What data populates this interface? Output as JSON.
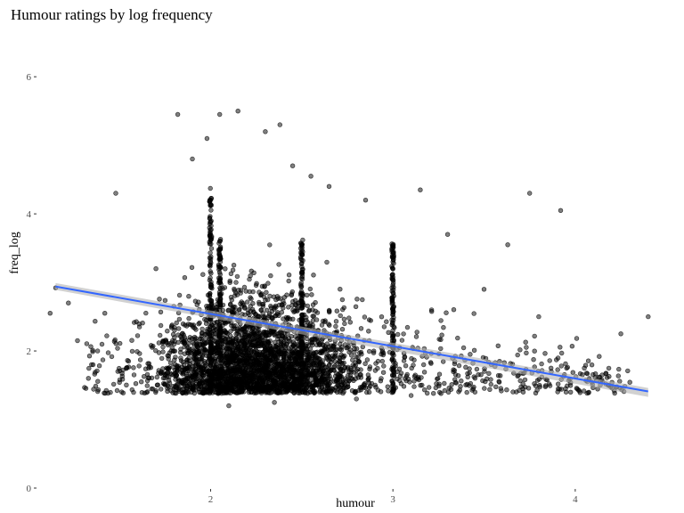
{
  "chart_data": {
    "type": "scatter",
    "title": "Humour ratings by log frequency",
    "xlabel": "humour",
    "ylabel": "freq_log",
    "xlim": [
      1.05,
      4.45
    ],
    "ylim": [
      0,
      6.6
    ],
    "x_ticks": [
      2,
      3,
      4
    ],
    "y_ticks": [
      0,
      2,
      4,
      6
    ],
    "grid": false,
    "legend": "none",
    "point_color": "#000000",
    "point_opacity": 0.5,
    "trend_color": "#3366FF",
    "ribbon_color": "#b3b3b3",
    "trend_line": {
      "x": [
        1.15,
        4.4
      ],
      "y": [
        2.94,
        1.41
      ],
      "se": [
        0.05,
        0.05
      ]
    },
    "sampled_points": [
      [
        1.15,
        2.92
      ],
      [
        1.22,
        2.7
      ],
      [
        1.27,
        2.15
      ],
      [
        1.33,
        1.6
      ],
      [
        1.38,
        2.0
      ],
      [
        1.42,
        2.55
      ],
      [
        1.48,
        4.3
      ],
      [
        1.55,
        1.85
      ],
      [
        1.62,
        1.55
      ],
      [
        1.7,
        3.2
      ],
      [
        1.82,
        5.45
      ],
      [
        1.9,
        4.8
      ],
      [
        1.98,
        5.1
      ],
      [
        2.05,
        5.45
      ],
      [
        2.15,
        5.5
      ],
      [
        2.3,
        5.2
      ],
      [
        2.38,
        5.3
      ],
      [
        2.45,
        4.7
      ],
      [
        2.55,
        4.55
      ],
      [
        2.65,
        4.4
      ],
      [
        2.85,
        4.2
      ],
      [
        3.0,
        3.3
      ],
      [
        3.15,
        4.35
      ],
      [
        3.3,
        3.7
      ],
      [
        3.5,
        2.9
      ],
      [
        3.63,
        3.55
      ],
      [
        3.75,
        4.3
      ],
      [
        3.8,
        2.5
      ],
      [
        3.92,
        4.05
      ],
      [
        4.05,
        1.75
      ],
      [
        4.15,
        1.55
      ],
      [
        4.25,
        2.25
      ],
      [
        4.4,
        2.5
      ],
      [
        2.1,
        1.2
      ],
      [
        2.35,
        1.25
      ],
      [
        2.8,
        1.3
      ],
      [
        3.1,
        1.35
      ],
      [
        3.45,
        1.4
      ],
      [
        3.95,
        1.4
      ],
      [
        1.12,
        2.55
      ]
    ]
  }
}
